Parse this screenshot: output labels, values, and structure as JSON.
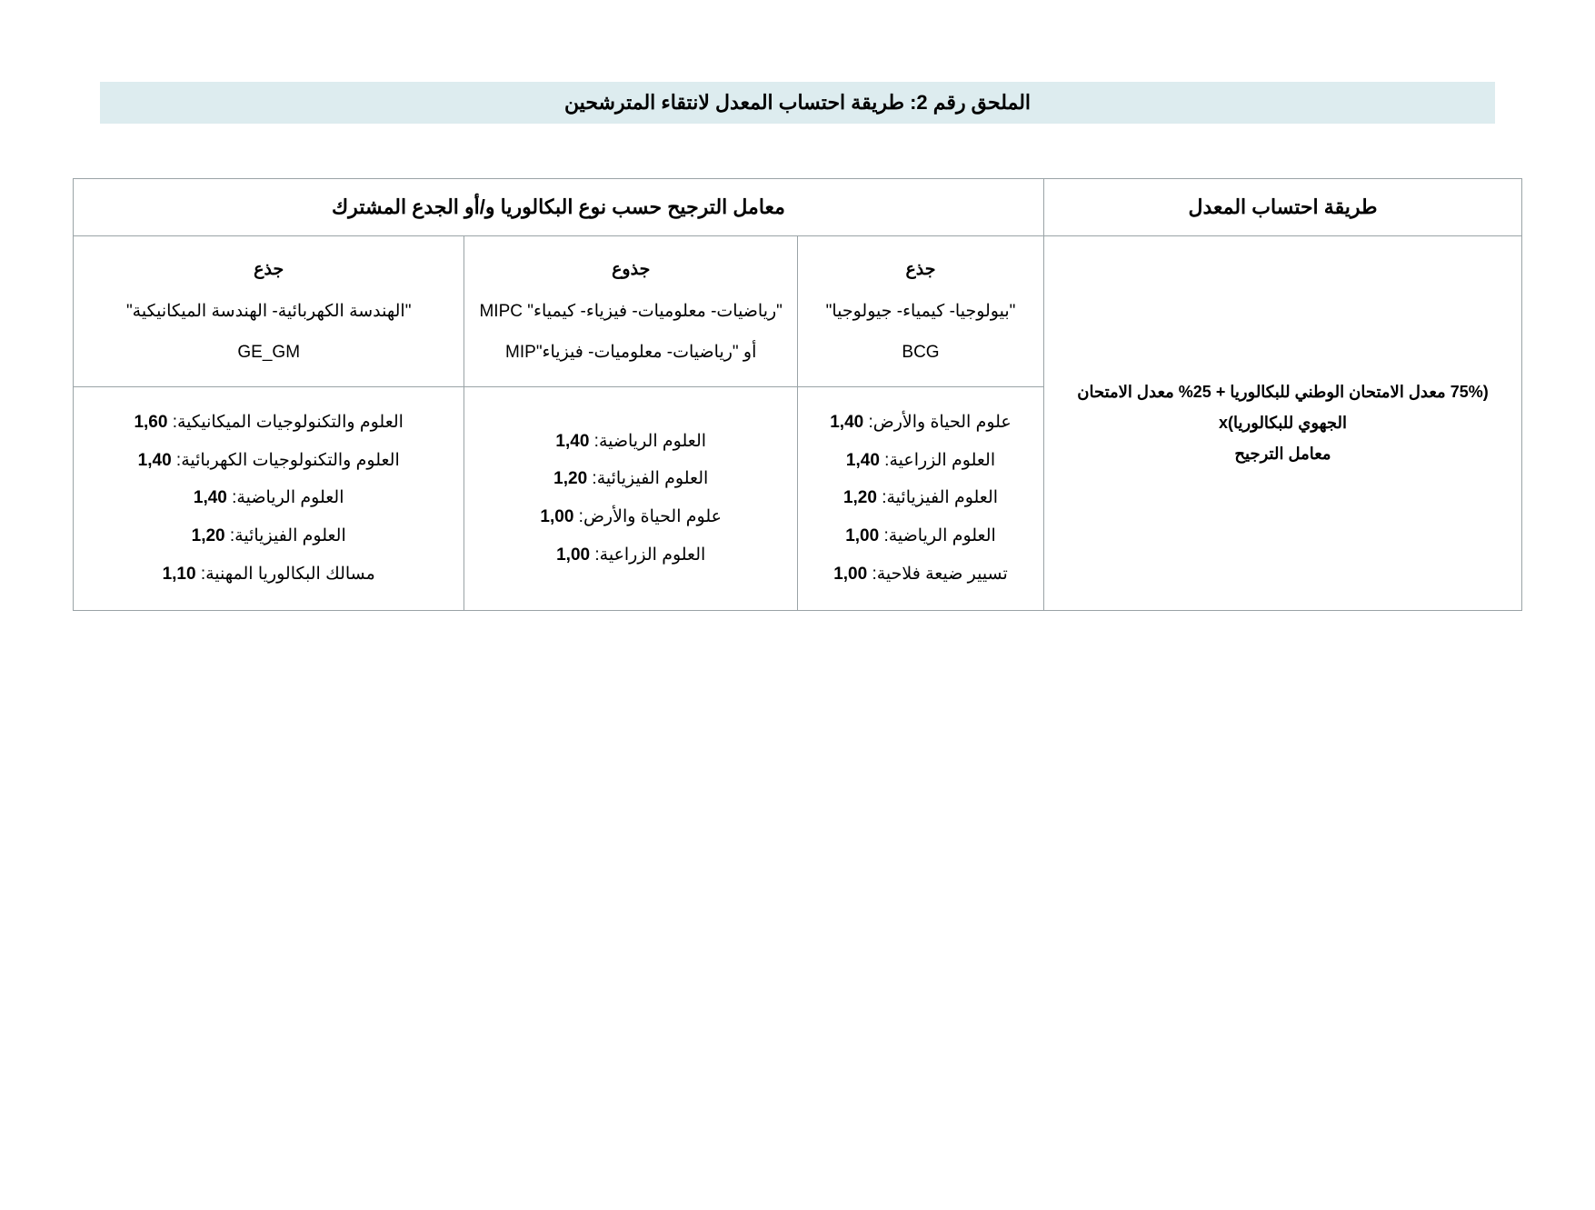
{
  "page": {
    "title": "الملحق رقم 2: طريقة احتساب المعدل لانتقاء المترشحين"
  },
  "columns": {
    "method_header": "طريقة احتساب المعدل",
    "weighting_header": "معامل الترجيح حسب نوع البكالوريا و/أو الجدع المشترك"
  },
  "tracks": {
    "bcg": {
      "line1": "جذع",
      "line2": "\"بيولوجيا- كيمياء- جيولوجيا\"",
      "line3": "BCG"
    },
    "mipc": {
      "line1": "جذوع",
      "line2": "\"رياضيات- معلوميات- فيزياء- كيمياء\" MIPC",
      "line3": "أو \"رياضيات- معلوميات- فيزياء\"MIP"
    },
    "gegm": {
      "line1": "جذع",
      "line2": "\"الهندسة الكهربائية- الهندسة الميكانيكية\"",
      "line3": "GE_GM"
    }
  },
  "coeffs": {
    "bcg": [
      {
        "label": "علوم الحياة والأرض:",
        "val": "1,40"
      },
      {
        "label": "العلوم الزراعية:",
        "val": "1,40"
      },
      {
        "label": "العلوم الفيزيائية:",
        "val": "1,20"
      },
      {
        "label": "العلوم الرياضية:",
        "val": "1,00"
      },
      {
        "label": "تسيير ضيعة فلاحية:",
        "val": "1,00"
      }
    ],
    "mipc": [
      {
        "label": "العلوم الرياضية:",
        "val": "1,40"
      },
      {
        "label": "العلوم الفيزيائية:",
        "val": "1,20"
      },
      {
        "label": "علوم الحياة والأرض:",
        "val": "1,00"
      },
      {
        "label": "العلوم الزراعية:",
        "val": "1,00"
      }
    ],
    "gegm": [
      {
        "label": "العلوم والتكنولوجيات الميكانيكية:",
        "val": "1,60"
      },
      {
        "label": "العلوم والتكنولوجيات الكهربائية:",
        "val": "1,40"
      },
      {
        "label": "العلوم الرياضية:",
        "val": "1,40"
      },
      {
        "label": "العلوم الفيزيائية:",
        "val": "1,20"
      },
      {
        "label": "مسالك البكالوريا المهنية:",
        "val": "1,10"
      }
    ]
  },
  "formula": {
    "line1": "(75% معدل الامتحان الوطني للبكالوريا + 25% معدل الامتحان الجهوي للبكالوريا)x",
    "line2": "معامل الترجيح"
  },
  "style": {
    "title_bg": "#ddecef",
    "border_color": "#9aa3a6",
    "page_bg": "#ffffff",
    "text_color": "#000000",
    "col_widths_pct": [
      37,
      16,
      17,
      16,
      14
    ]
  }
}
